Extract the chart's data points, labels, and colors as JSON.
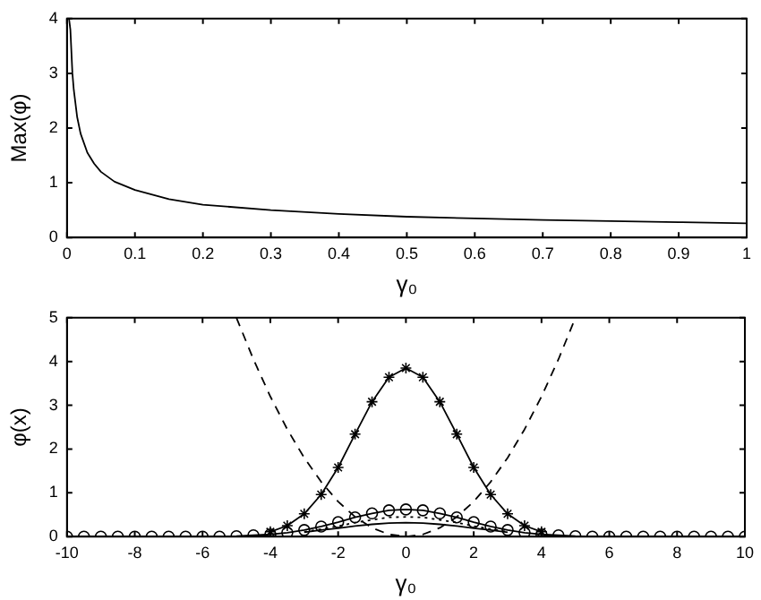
{
  "chart_data": [
    {
      "type": "line",
      "xlabel": "γ₀",
      "ylabel": "Max(φ)",
      "xlim": [
        0,
        1
      ],
      "ylim": [
        0,
        4
      ],
      "xticks": [
        0,
        0.1,
        0.2,
        0.3,
        0.4,
        0.5,
        0.6,
        0.7,
        0.8,
        0.9,
        1
      ],
      "yticks": [
        0,
        1,
        2,
        3,
        4
      ],
      "grid": false,
      "legend": false,
      "marker": "none",
      "line_style": "solid",
      "x": [
        0.003,
        0.005,
        0.008,
        0.01,
        0.015,
        0.02,
        0.03,
        0.04,
        0.05,
        0.07,
        0.1,
        0.15,
        0.2,
        0.3,
        0.4,
        0.5,
        0.6,
        0.7,
        0.8,
        0.9,
        1
      ],
      "series": [
        {
          "color": "#000000",
          "values": [
            4,
            3.8,
            3.0,
            2.7,
            2.2,
            1.9,
            1.55,
            1.35,
            1.2,
            1.02,
            0.87,
            0.7,
            0.6,
            0.5,
            0.43,
            0.38,
            0.35,
            0.32,
            0.3,
            0.28,
            0.26
          ]
        }
      ]
    },
    {
      "type": "line",
      "xlabel": "γ₀",
      "ylabel": "φ(x)",
      "xlim": [
        -10,
        10
      ],
      "ylim": [
        0,
        5
      ],
      "xticks": [
        -10,
        -8,
        -6,
        -4,
        -2,
        0,
        2,
        4,
        6,
        8,
        10
      ],
      "yticks": [
        0,
        1,
        2,
        3,
        4,
        5
      ],
      "grid": false,
      "legend": false,
      "x": [
        -10,
        -9.5,
        -9,
        -8.5,
        -8,
        -7.5,
        -7,
        -6.5,
        -6,
        -5.5,
        -5,
        -4.5,
        -4,
        -3.5,
        -3,
        -2.5,
        -2,
        -1.5,
        -1,
        -0.5,
        0,
        0.5,
        1,
        1.5,
        2,
        2.5,
        3,
        3.5,
        4,
        4.5,
        5,
        5.5,
        6,
        6.5,
        7,
        7.5,
        8,
        8.5,
        9,
        9.5,
        10
      ],
      "series": [
        {
          "color": "#000000",
          "marker": "cross",
          "line_style": "solid",
          "x": [
            -4,
            -3.5,
            -3,
            -2.5,
            -2,
            -1.5,
            -1,
            -0.5,
            0,
            0.5,
            1,
            1.5,
            2,
            2.5,
            3,
            3.5,
            4
          ],
          "values": [
            0.11,
            0.25,
            0.52,
            0.96,
            1.58,
            2.34,
            3.08,
            3.64,
            3.85,
            3.64,
            3.08,
            2.34,
            1.58,
            0.96,
            0.52,
            0.25,
            0.11
          ]
        },
        {
          "color": "#000000",
          "marker": "circle",
          "line_style": "solid",
          "values": [
            0,
            0,
            0,
            0,
            0,
            0,
            0,
            0,
            0,
            0,
            0.01,
            0.03,
            0.05,
            0.09,
            0.15,
            0.23,
            0.33,
            0.44,
            0.53,
            0.6,
            0.62,
            0.6,
            0.53,
            0.44,
            0.33,
            0.23,
            0.15,
            0.09,
            0.05,
            0.03,
            0.01,
            0,
            0,
            0,
            0,
            0,
            0,
            0,
            0,
            0,
            0
          ]
        },
        {
          "color": "#000000",
          "marker": "none",
          "line_style": "dotted",
          "x": [
            -3,
            -2.5,
            -2,
            -1.5,
            -1,
            -0.5,
            0,
            0.5,
            1,
            1.5,
            2,
            2.5,
            3
          ],
          "values": [
            0.11,
            0.17,
            0.24,
            0.32,
            0.38,
            0.44,
            0.45,
            0.44,
            0.38,
            0.32,
            0.24,
            0.17,
            0.11
          ]
        },
        {
          "color": "#000000",
          "marker": "none",
          "line_style": "solid",
          "x": [
            -3,
            -2.5,
            -2,
            -1.5,
            -1,
            -0.5,
            0,
            0.5,
            1,
            1.5,
            2,
            2.5,
            3
          ],
          "values": [
            0.1,
            0.15,
            0.19,
            0.24,
            0.28,
            0.31,
            0.32,
            0.31,
            0.28,
            0.24,
            0.19,
            0.15,
            0.1
          ]
        },
        {
          "color": "#000000",
          "marker": "none",
          "line_style": "dashed",
          "x": [
            -5,
            -4.5,
            -4,
            -3.5,
            -3,
            -2.5,
            -2,
            -1.5,
            -1,
            -0.5,
            0,
            0.5,
            1,
            1.5,
            2,
            2.5,
            3,
            3.5,
            4,
            4.5,
            5
          ],
          "values": [
            5,
            4.05,
            3.2,
            2.45,
            1.8,
            1.25,
            0.8,
            0.45,
            0.2,
            0.05,
            0,
            0.05,
            0.2,
            0.45,
            0.8,
            1.25,
            1.8,
            2.45,
            3.2,
            4.05,
            5
          ]
        }
      ]
    }
  ]
}
